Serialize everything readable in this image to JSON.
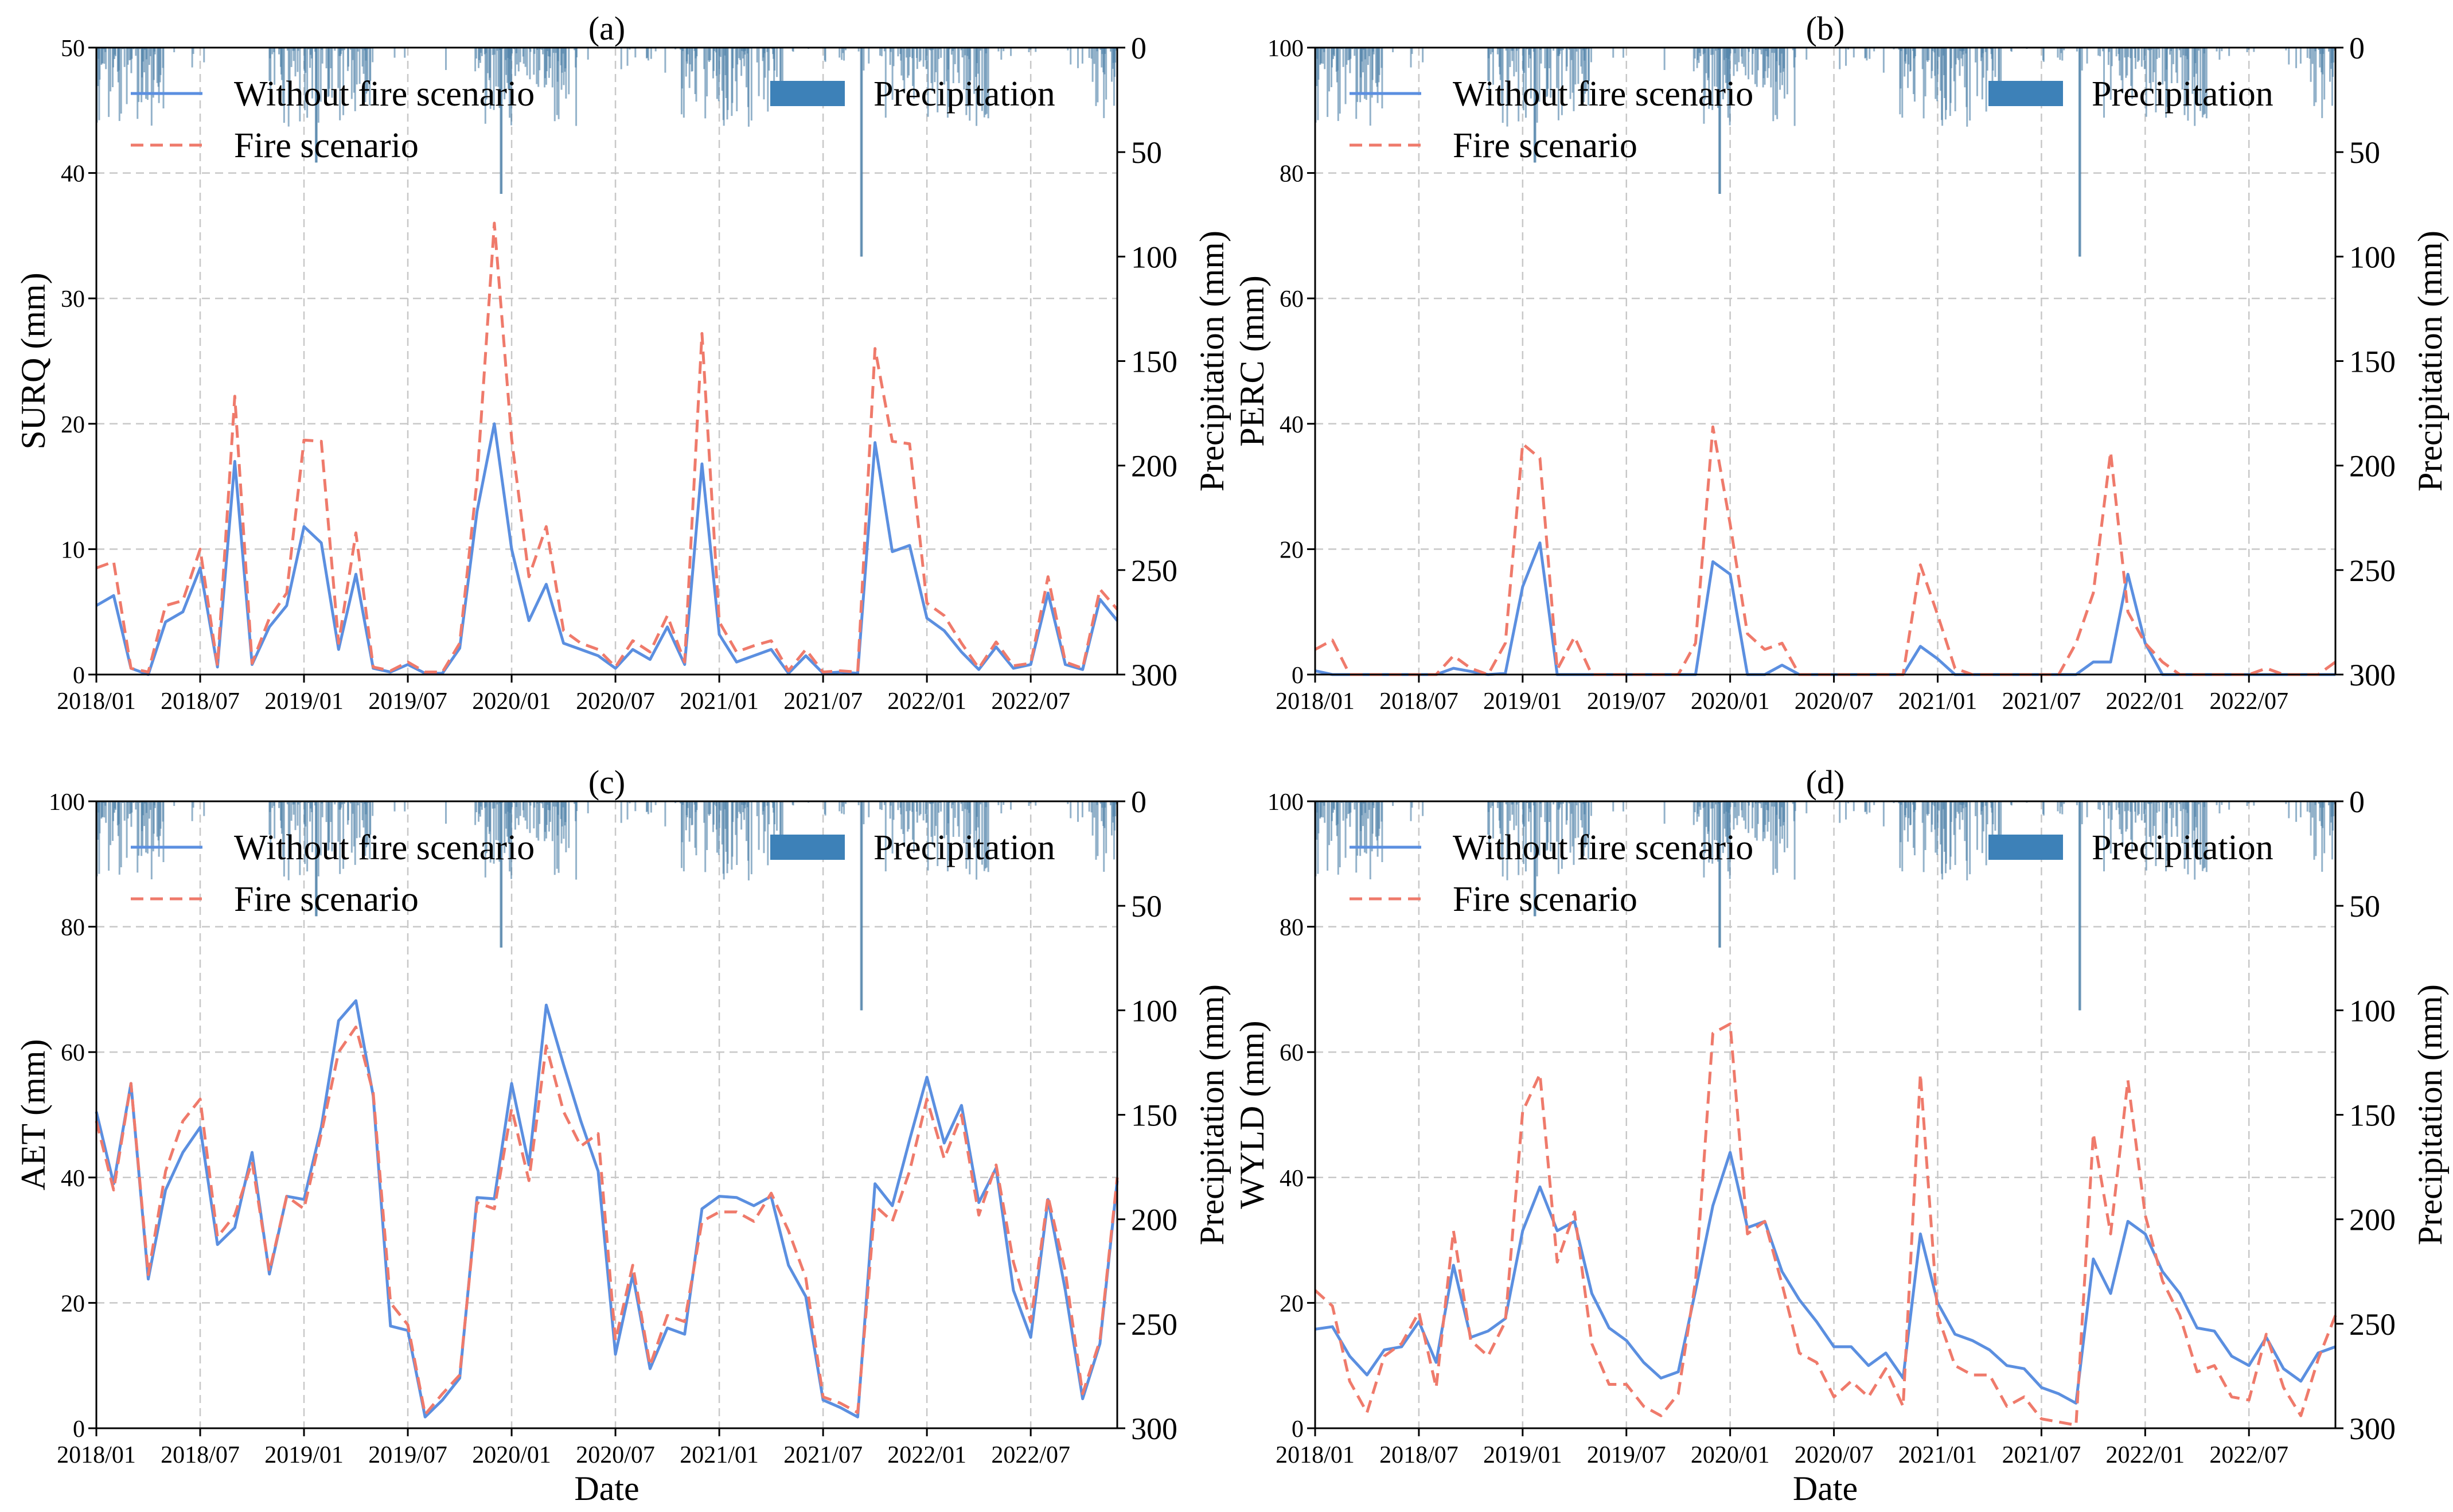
{
  "colors": {
    "without_fire": "#5b8fe0",
    "fire": "#ef7a6b",
    "precip": "#3d81b8"
  },
  "legend": {
    "without_fire": "Without fire scenario",
    "fire": "Fire scenario",
    "precip": "Precipitation"
  },
  "chart_data": [
    {
      "type": "line",
      "title": "(a)",
      "xlabel": "",
      "ylabel": "SURQ (mm)",
      "ylabel_right": "Precipitation (mm)",
      "ylim": [
        0,
        50
      ],
      "yticks": [
        0,
        10,
        20,
        30,
        40,
        50
      ],
      "ylim_right": [
        300,
        0
      ],
      "yticks_right": [
        300,
        250,
        200,
        150,
        100,
        50,
        0
      ],
      "xlim": [
        0,
        59
      ],
      "x_ticks": [
        "2018/01",
        "2018/07",
        "2019/01",
        "2019/07",
        "2020/01",
        "2020/07",
        "2021/01",
        "2021/07",
        "2022/01",
        "2022/07"
      ],
      "x_tick_positions": [
        0,
        6,
        12,
        18,
        24,
        30,
        36,
        42,
        48,
        54
      ],
      "series": [
        {
          "name": "Without fire scenario",
          "values": [
            5.5,
            6.3,
            0.5,
            0.0,
            4.2,
            5.0,
            8.5,
            0.6,
            17.0,
            0.8,
            3.8,
            5.5,
            11.8,
            10.5,
            2.0,
            8.0,
            0.5,
            0.2,
            0.8,
            0.1,
            0.1,
            2.1,
            13.0,
            20.0,
            10.0,
            4.3,
            7.2,
            2.5,
            2.0,
            1.5,
            0.5,
            2.0,
            1.2,
            3.8,
            0.8,
            16.8,
            3.2,
            1.0,
            1.5,
            2.0,
            0.1,
            1.5,
            0.1,
            0.2,
            0.1,
            18.5,
            9.8,
            10.3,
            4.5,
            3.5,
            1.8,
            0.4,
            2.2,
            0.5,
            0.8,
            6.5,
            0.8,
            0.4,
            6.0,
            4.3
          ]
        },
        {
          "name": "Fire scenario",
          "values": [
            8.5,
            9.0,
            0.5,
            0.2,
            5.5,
            5.9,
            10.0,
            0.7,
            22.2,
            0.9,
            4.5,
            6.5,
            18.7,
            18.6,
            2.5,
            11.3,
            0.6,
            0.3,
            1.0,
            0.2,
            0.2,
            2.5,
            15.5,
            36.0,
            18.8,
            7.8,
            11.8,
            3.5,
            2.5,
            2.0,
            0.6,
            2.7,
            1.8,
            4.7,
            1.0,
            27.2,
            4.2,
            1.8,
            2.3,
            2.7,
            0.3,
            2.0,
            0.2,
            0.3,
            0.2,
            26.0,
            18.6,
            18.4,
            5.7,
            4.7,
            2.5,
            0.5,
            2.6,
            0.7,
            0.9,
            7.8,
            1.0,
            0.5,
            6.8,
            5.2
          ]
        }
      ]
    },
    {
      "type": "line",
      "title": "(b)",
      "xlabel": "",
      "ylabel": "PERC (mm)",
      "ylabel_right": "Precipitation (mm)",
      "ylim": [
        0,
        100
      ],
      "yticks": [
        0,
        20,
        40,
        60,
        80,
        100
      ],
      "ylim_right": [
        300,
        0
      ],
      "yticks_right": [
        300,
        250,
        200,
        150,
        100,
        50,
        0
      ],
      "xlim": [
        0,
        59
      ],
      "x_ticks": [
        "2018/01",
        "2018/07",
        "2019/01",
        "2019/07",
        "2020/01",
        "2020/07",
        "2021/01",
        "2021/07",
        "2022/01",
        "2022/07"
      ],
      "x_tick_positions": [
        0,
        6,
        12,
        18,
        24,
        30,
        36,
        42,
        48,
        54
      ],
      "series": [
        {
          "name": "Without fire scenario",
          "values": [
            0.6,
            0,
            0,
            0,
            0,
            0,
            0,
            0,
            1.0,
            0.5,
            0,
            0.2,
            14.0,
            21.0,
            0,
            0,
            0,
            0,
            0,
            0,
            0,
            0,
            0,
            18.0,
            16.0,
            0,
            0,
            1.5,
            0,
            0,
            0,
            0,
            0,
            0,
            0,
            4.5,
            2.5,
            0,
            0,
            0,
            0,
            0,
            0,
            0,
            0,
            2.0,
            2.0,
            16.0,
            5.0,
            0,
            0,
            0,
            0,
            0,
            0,
            0,
            0,
            0,
            0,
            0
          ]
        },
        {
          "name": "Fire scenario",
          "values": [
            4.0,
            5.5,
            0,
            0,
            0,
            0,
            0,
            0,
            3.0,
            1.0,
            0,
            5.0,
            36.8,
            34.5,
            0.8,
            6.0,
            0,
            0,
            0,
            0,
            0,
            0,
            5.0,
            39.5,
            24.0,
            6.5,
            4.0,
            5.0,
            0,
            0,
            0,
            0,
            0,
            0,
            0,
            17.5,
            9.5,
            1.0,
            0,
            0,
            0,
            0,
            0,
            0,
            5.0,
            13.0,
            35.5,
            10.0,
            5.0,
            2.0,
            0,
            0,
            0,
            0,
            0,
            1.0,
            0,
            0,
            0,
            2.0
          ]
        }
      ]
    },
    {
      "type": "line",
      "title": "(c)",
      "xlabel": "Date",
      "ylabel": "AET (mm)",
      "ylabel_right": "Precipitation (mm)",
      "ylim": [
        0,
        100
      ],
      "yticks": [
        0,
        20,
        40,
        60,
        80,
        100
      ],
      "ylim_right": [
        300,
        0
      ],
      "yticks_right": [
        300,
        250,
        200,
        150,
        100,
        50,
        0
      ],
      "xlim": [
        0,
        59
      ],
      "x_ticks": [
        "2018/01",
        "2018/07",
        "2019/01",
        "2019/07",
        "2020/01",
        "2020/07",
        "2021/01",
        "2021/07",
        "2022/01",
        "2022/07"
      ],
      "x_tick_positions": [
        0,
        6,
        12,
        18,
        24,
        30,
        36,
        42,
        48,
        54
      ],
      "series": [
        {
          "name": "Without fire scenario",
          "values": [
            50.5,
            39.0,
            55.0,
            23.8,
            38.0,
            44.0,
            48.0,
            29.3,
            32.0,
            44.0,
            24.6,
            37.0,
            36.5,
            48.0,
            65.0,
            68.2,
            53.0,
            16.3,
            15.6,
            1.8,
            4.5,
            8.0,
            36.8,
            36.6,
            55.0,
            42.0,
            67.5,
            58.0,
            49.0,
            41.0,
            11.8,
            24.5,
            9.5,
            16.0,
            15.0,
            35.0,
            37.0,
            36.8,
            35.5,
            37.0,
            26.0,
            21.0,
            4.5,
            3.3,
            1.8,
            39.0,
            35.5,
            46.0,
            56.0,
            45.5,
            51.5,
            36.0,
            41.5,
            22.0,
            14.5,
            36.5,
            22.0,
            4.7,
            13.5,
            39.5
          ]
        },
        {
          "name": "Fire scenario",
          "values": [
            49.0,
            38.0,
            55.0,
            24.5,
            41.0,
            49.0,
            52.5,
            30.5,
            34.0,
            42.5,
            25.0,
            37.0,
            35.0,
            47.0,
            60.0,
            64.0,
            53.5,
            20.0,
            16.5,
            2.2,
            5.5,
            8.5,
            36.0,
            35.0,
            51.0,
            39.5,
            61.0,
            50.5,
            45.0,
            47.0,
            14.0,
            26.0,
            10.0,
            18.0,
            17.0,
            33.0,
            34.5,
            34.5,
            33.0,
            37.5,
            31.5,
            24.0,
            5.0,
            4.0,
            2.5,
            35.5,
            33.0,
            41.0,
            52.5,
            43.0,
            50.0,
            34.0,
            42.0,
            26.5,
            17.0,
            37.0,
            25.0,
            5.5,
            14.0,
            40.0
          ]
        }
      ]
    },
    {
      "type": "line",
      "title": "(d)",
      "xlabel": "Date",
      "ylabel": "WYLD (mm)",
      "ylabel_right": "Precipitation (mm)",
      "ylim": [
        0,
        100
      ],
      "yticks": [
        0,
        20,
        40,
        60,
        80,
        100
      ],
      "ylim_right": [
        300,
        0
      ],
      "yticks_right": [
        300,
        250,
        200,
        150,
        100,
        50,
        0
      ],
      "xlim": [
        0,
        59
      ],
      "x_ticks": [
        "2018/01",
        "2018/07",
        "2019/01",
        "2019/07",
        "2020/01",
        "2020/07",
        "2021/01",
        "2021/07",
        "2022/01",
        "2022/07"
      ],
      "x_tick_positions": [
        0,
        6,
        12,
        18,
        24,
        30,
        36,
        42,
        48,
        54
      ],
      "series": [
        {
          "name": "Without fire scenario",
          "values": [
            15.8,
            16.2,
            11.5,
            8.5,
            12.5,
            13.0,
            17.0,
            10.5,
            26.0,
            14.5,
            15.5,
            17.5,
            31.5,
            38.5,
            31.5,
            33.0,
            21.5,
            16.0,
            14.0,
            10.5,
            8.0,
            9.0,
            22.0,
            35.5,
            44.0,
            32.0,
            33.0,
            25.0,
            20.5,
            17.0,
            13.0,
            13.0,
            10.0,
            12.0,
            8.0,
            31.0,
            20.0,
            15.0,
            14.0,
            12.5,
            10.0,
            9.5,
            6.5,
            5.5,
            4.0,
            27.0,
            21.5,
            33.0,
            31.0,
            25.0,
            21.5,
            16.0,
            15.5,
            11.5,
            10.0,
            14.5,
            9.5,
            7.5,
            12.0,
            13.0
          ]
        },
        {
          "name": "Fire scenario",
          "values": [
            22.0,
            19.5,
            7.5,
            2.5,
            11.5,
            13.5,
            18.5,
            6.5,
            31.5,
            14.0,
            11.5,
            17.0,
            50.5,
            56.5,
            26.5,
            34.5,
            13.5,
            7.0,
            7.0,
            3.5,
            2.0,
            5.5,
            23.5,
            63.0,
            64.5,
            31.0,
            33.0,
            23.0,
            12.0,
            10.5,
            5.0,
            7.5,
            5.0,
            9.5,
            3.5,
            56.5,
            18.0,
            10.0,
            8.5,
            8.5,
            3.5,
            5.0,
            1.5,
            1.0,
            0.5,
            47.0,
            31.0,
            55.5,
            34.0,
            23.5,
            18.0,
            9.0,
            10.0,
            5.0,
            4.5,
            15.0,
            6.5,
            2.0,
            11.0,
            18.0
          ]
        }
      ]
    }
  ]
}
